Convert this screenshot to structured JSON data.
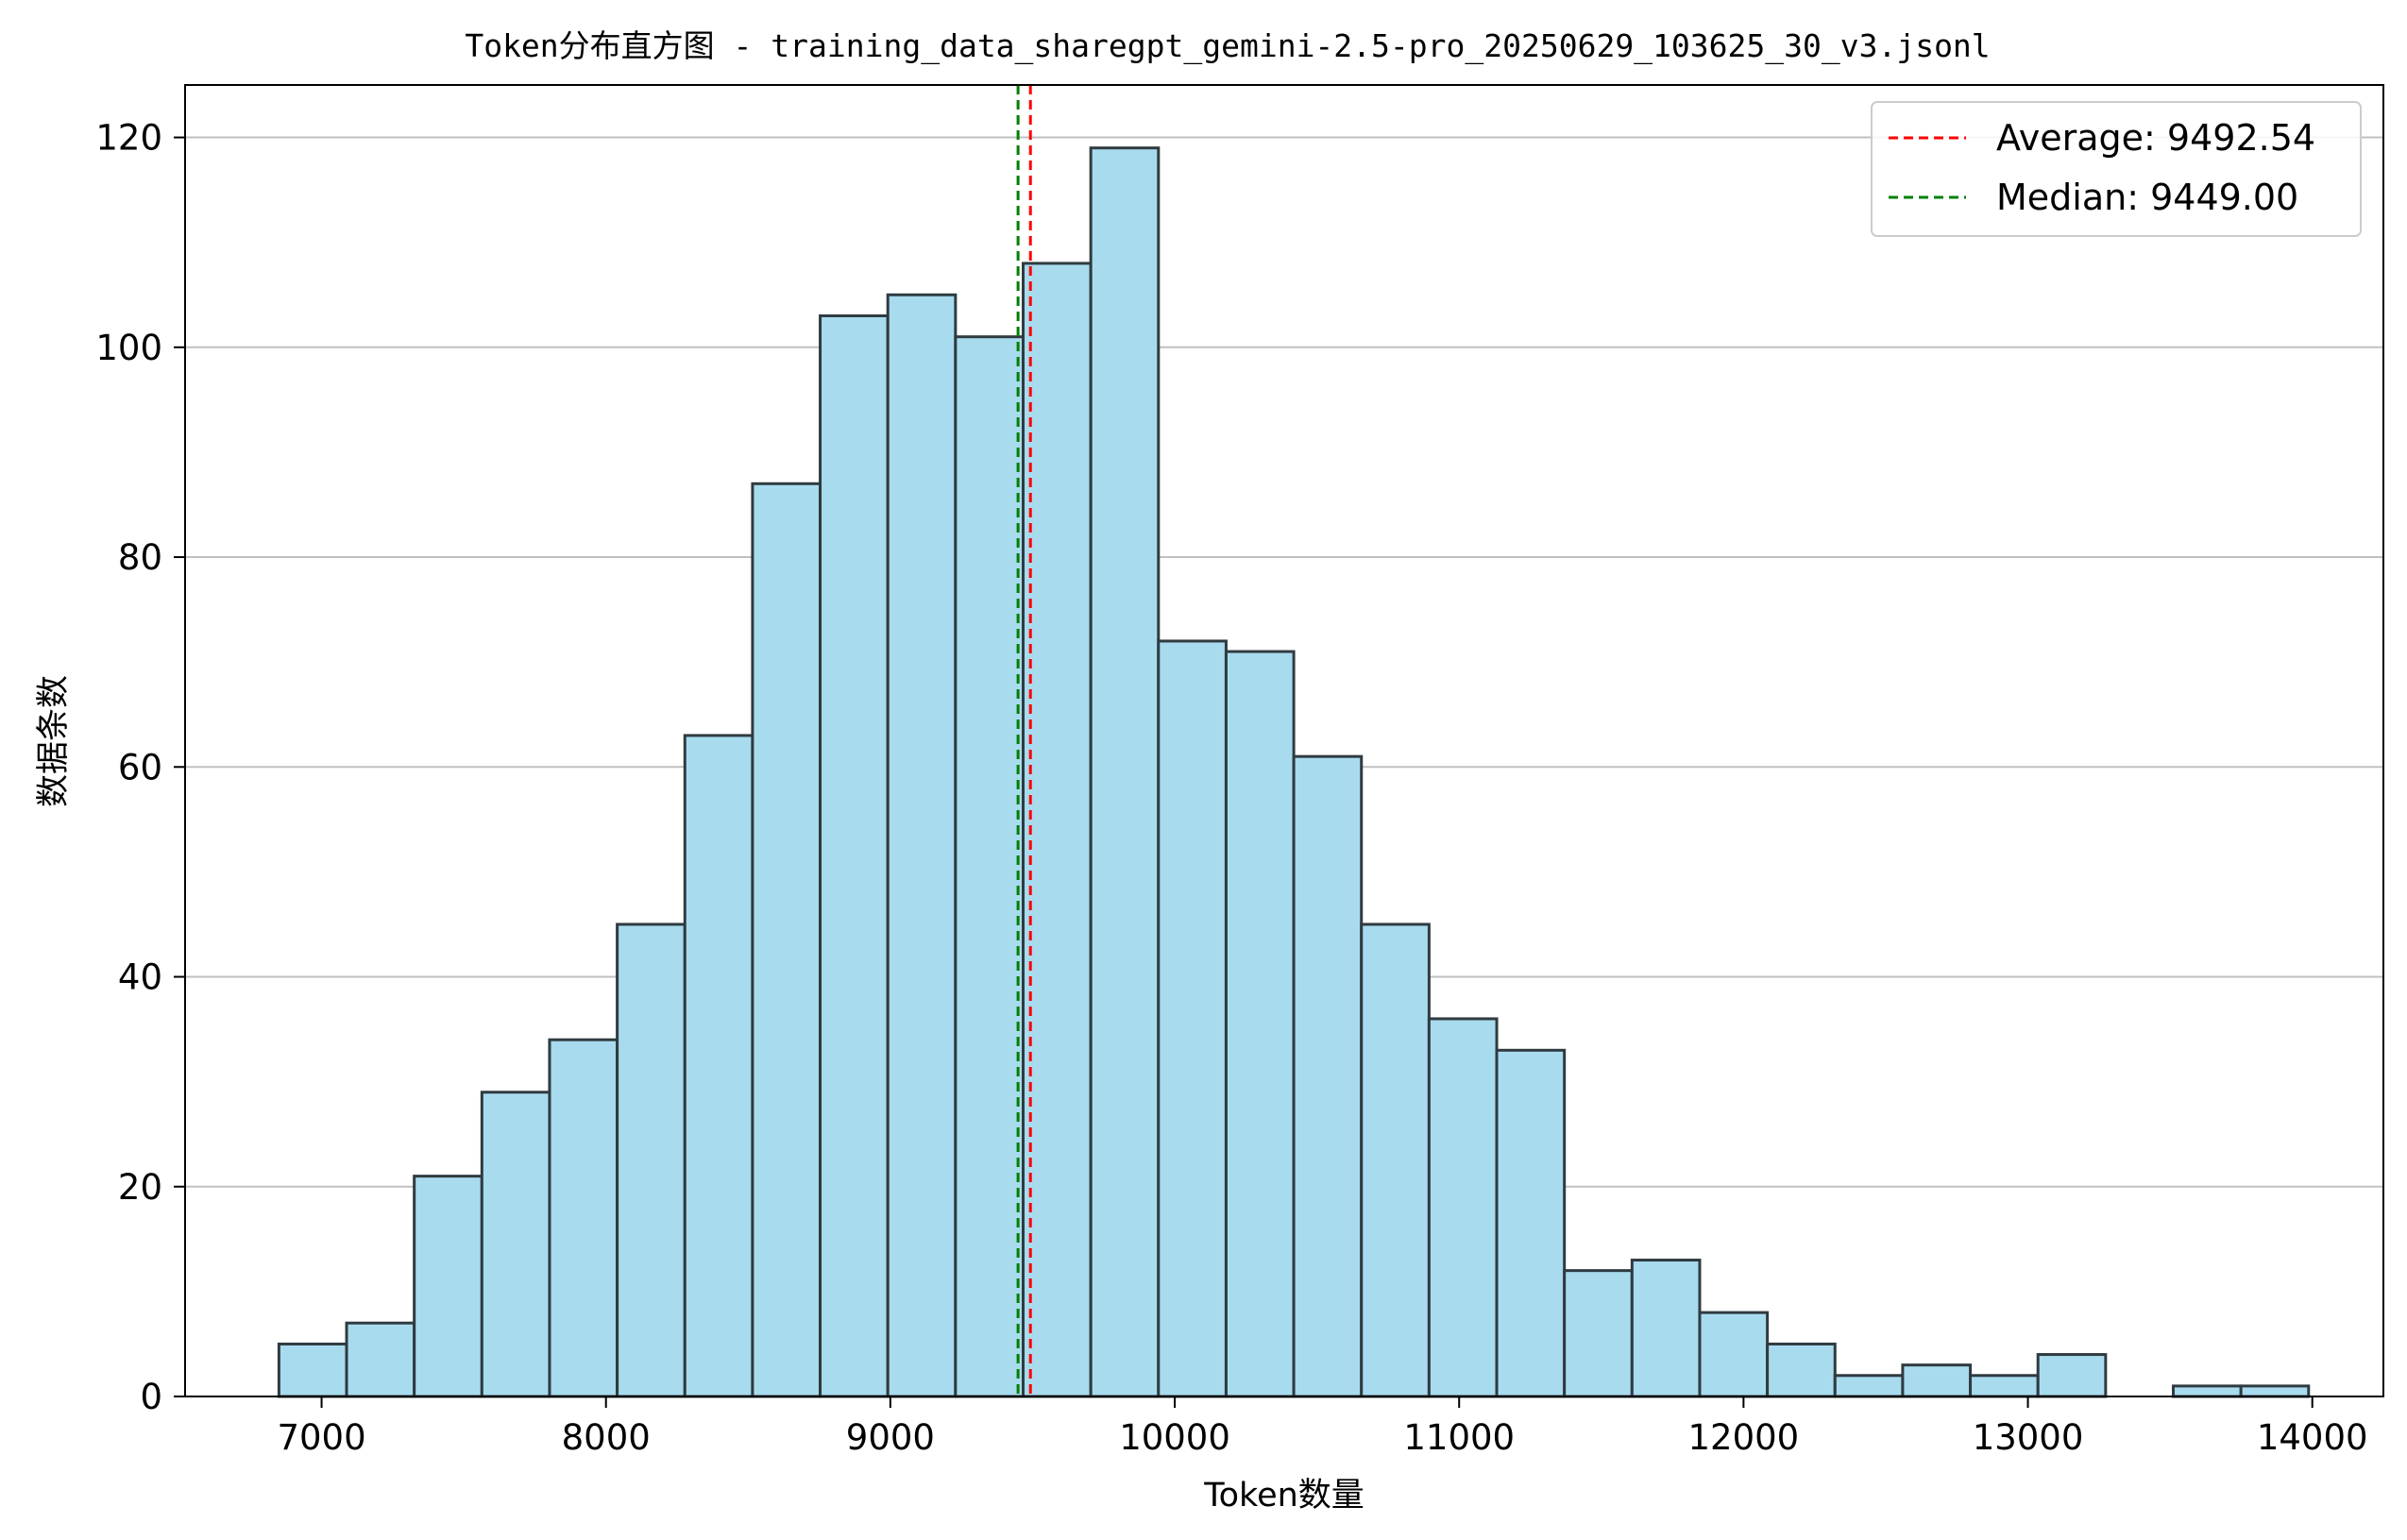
{
  "chart_data": {
    "type": "bar",
    "title": "Token分布直方图 - training_data_sharegpt_gemini-2.5-pro_20250629_103625_30_v3.jsonl",
    "xlabel": "Token数量",
    "ylabel": "数据条数",
    "xlim": [
      6520,
      14250
    ],
    "ylim": [
      0,
      125
    ],
    "xticks": [
      7000,
      8000,
      9000,
      10000,
      11000,
      12000,
      13000,
      14000
    ],
    "yticks": [
      0,
      20,
      40,
      60,
      80,
      100,
      120
    ],
    "grid": "horizontal",
    "legend_position": "top-right",
    "bin_start": 6850,
    "bin_width": 237.9,
    "values": [
      5,
      7,
      21,
      29,
      34,
      45,
      63,
      87,
      103,
      105,
      101,
      108,
      119,
      72,
      71,
      61,
      45,
      36,
      33,
      12,
      13,
      8,
      5,
      2,
      3,
      2,
      4,
      0,
      1,
      1
    ],
    "bar_color": "#a9dbee",
    "edge_color": "#2f3b40",
    "reference_lines": [
      {
        "label": "Average: 9492.54",
        "x": 9492.54,
        "color": "#ff0000"
      },
      {
        "label": "Median: 9449.00",
        "x": 9449.0,
        "color": "#008000"
      }
    ]
  }
}
